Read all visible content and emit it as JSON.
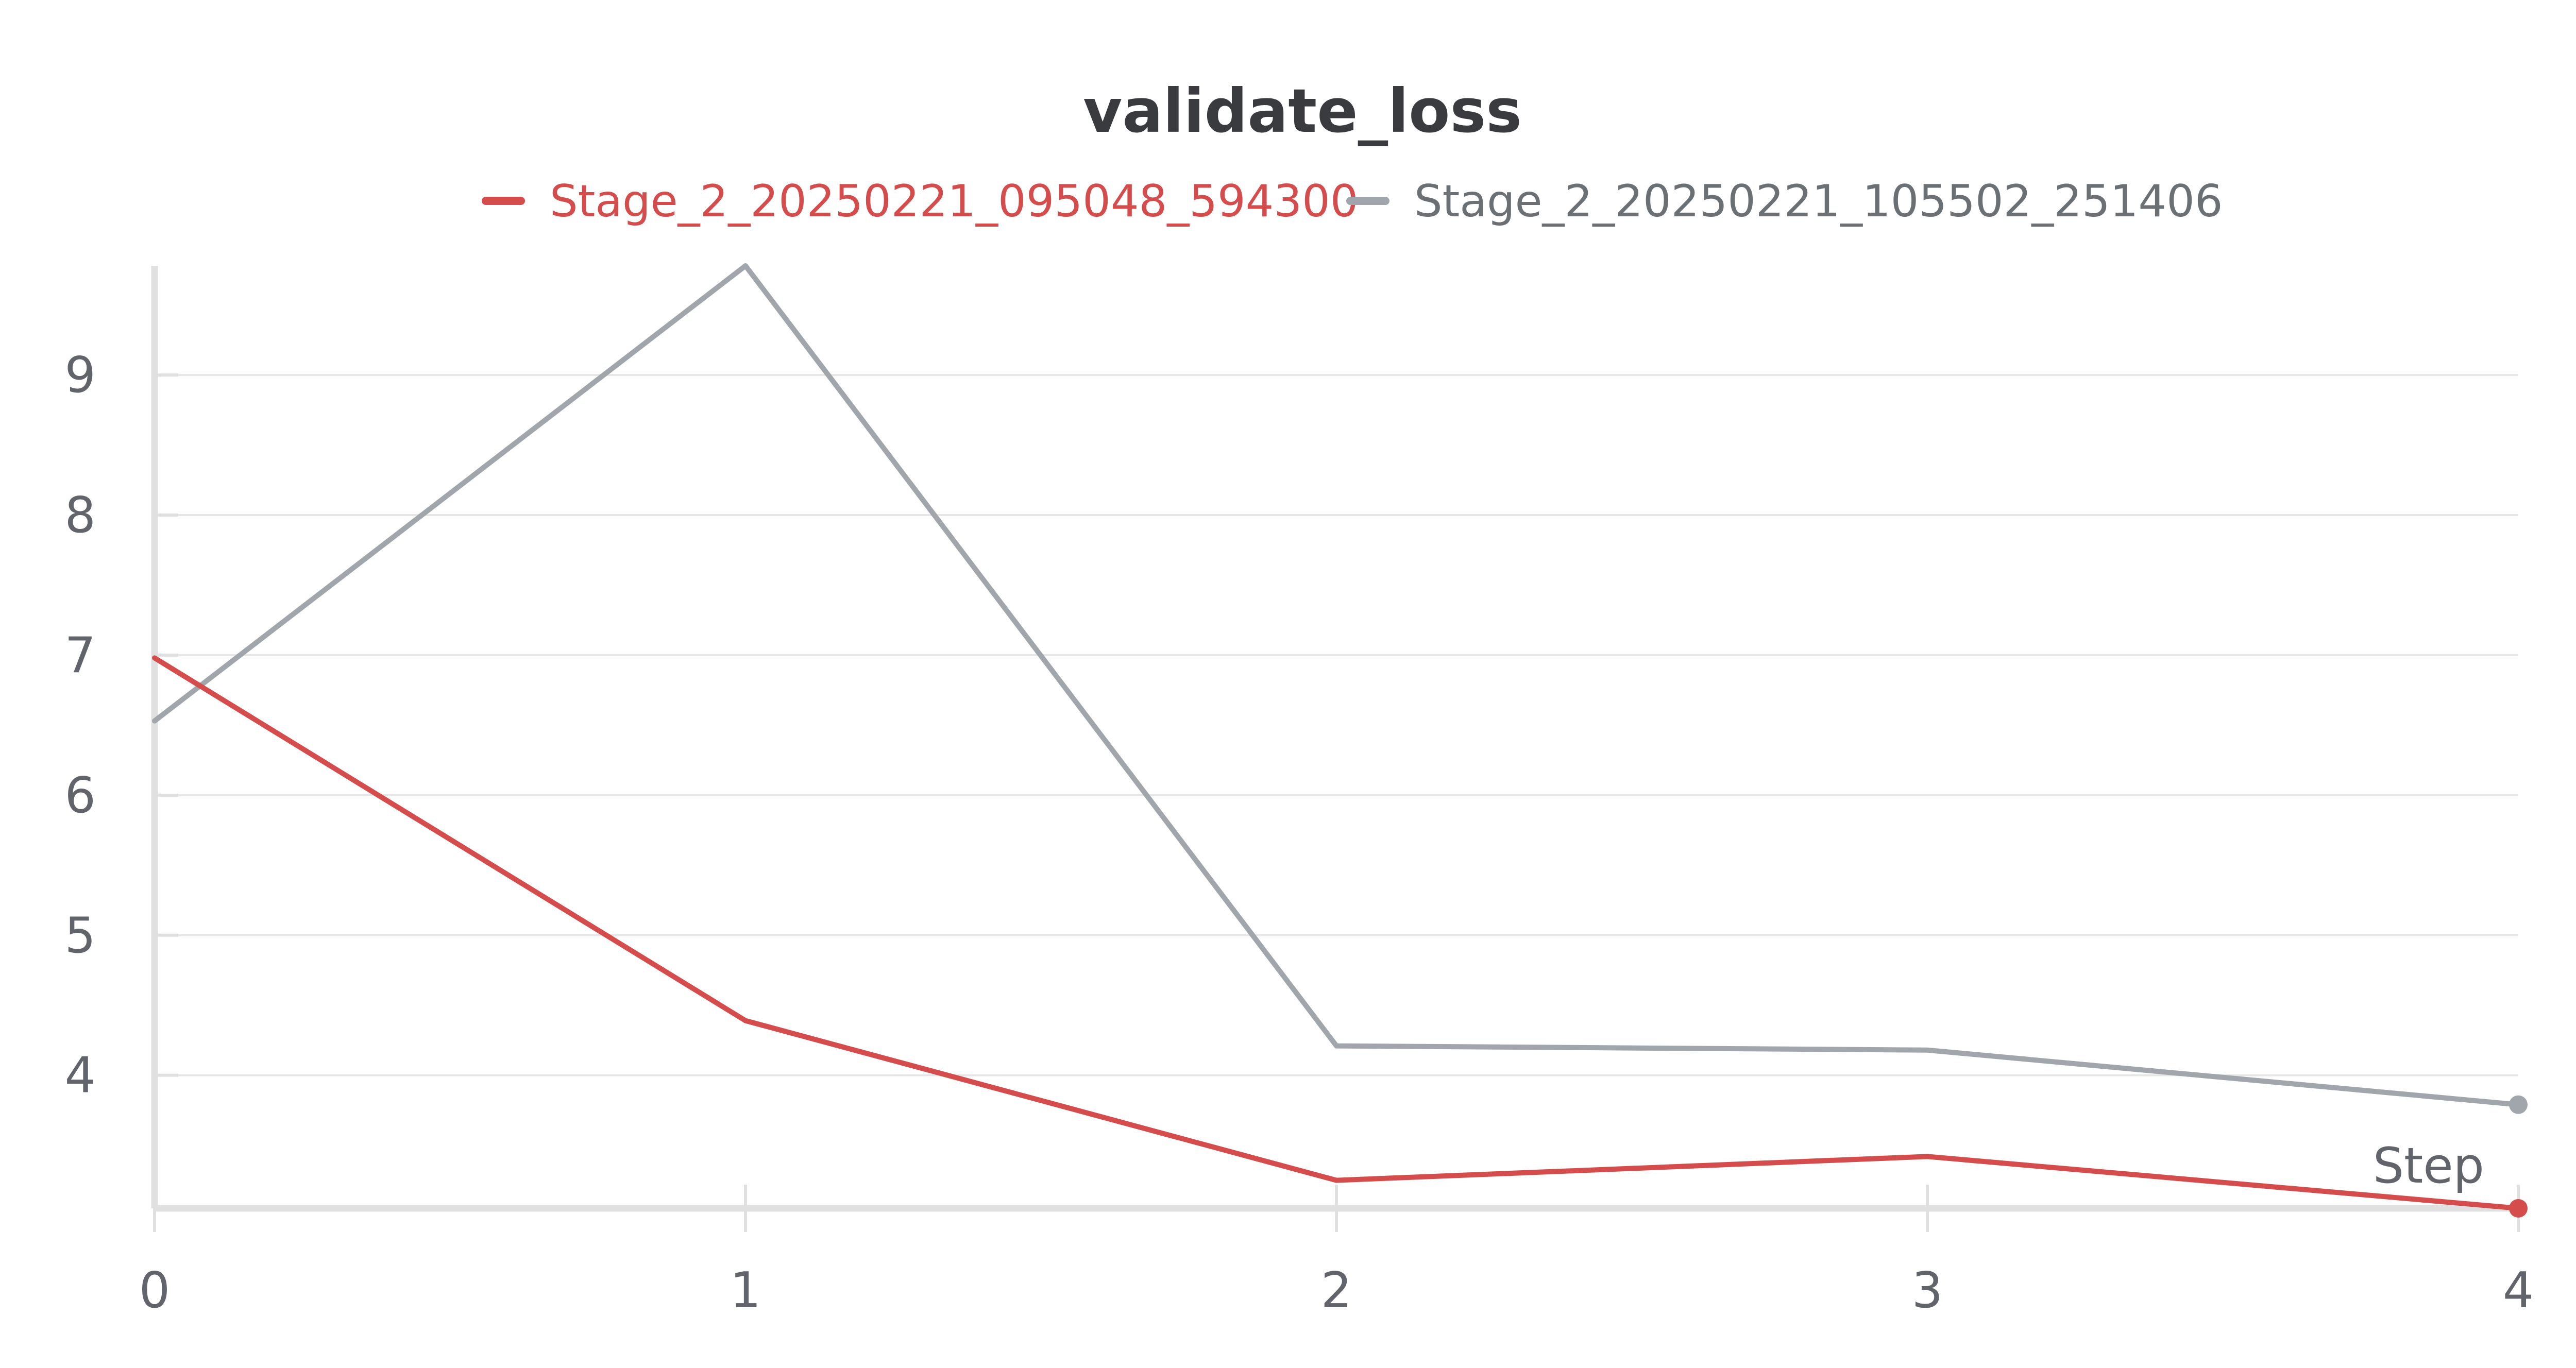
{
  "colors": {
    "background": "#ffffff",
    "grid": "#e6e6e6",
    "axis": "#e0e0e0",
    "text": "#62646b",
    "title": "#3a3b3f"
  },
  "chart_data": {
    "type": "line",
    "title": "validate_loss",
    "xlabel": "Step",
    "ylabel": "",
    "x": [
      0,
      1,
      2,
      3,
      4
    ],
    "xlim": [
      0,
      4
    ],
    "ylim": [
      3.05,
      9.78
    ],
    "x_ticks": [
      0,
      1,
      2,
      3,
      4
    ],
    "y_ticks": [
      4,
      5,
      6,
      7,
      8,
      9
    ],
    "grid": true,
    "legend_position": "top-center",
    "series": [
      {
        "name": "Stage_2_20250221_095048_594300",
        "color": "#d44c4c",
        "values": [
          6.98,
          4.39,
          3.25,
          3.42,
          3.05
        ]
      },
      {
        "name": "Stage_2_20250221_105502_251406",
        "color": "#a0a6ab",
        "values": [
          6.53,
          9.78,
          4.21,
          4.18,
          3.79
        ]
      }
    ]
  }
}
